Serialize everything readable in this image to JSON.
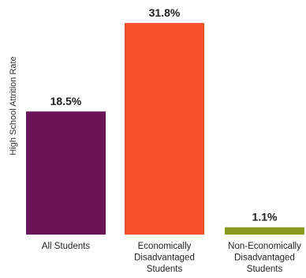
{
  "chart_data": {
    "type": "bar",
    "title": "",
    "xlabel": "",
    "ylabel": "High School Attrition Rate",
    "ylim": [
      0,
      33
    ],
    "grid": false,
    "legend": "none",
    "categories": [
      [
        "All Students"
      ],
      [
        "Economically",
        "Disadvantaged",
        "Students"
      ],
      [
        "Non-Economically",
        "Disadvantaged",
        "Students"
      ]
    ],
    "values": [
      18.5,
      31.8,
      1.1
    ],
    "value_labels": [
      "18.5%",
      "31.8%",
      "1.1%"
    ],
    "colors": [
      "#6b1558",
      "#f4512b",
      "#8a9a1c"
    ]
  }
}
